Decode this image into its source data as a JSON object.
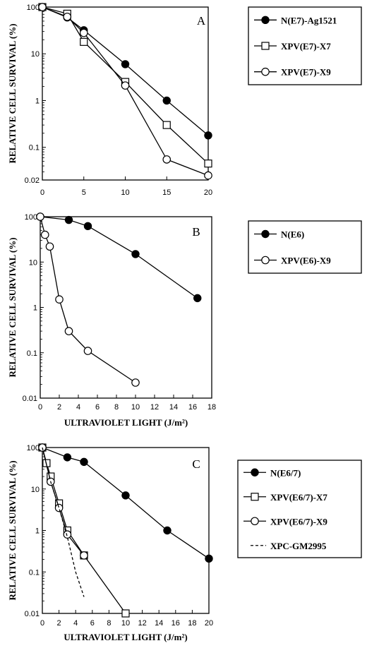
{
  "chart_data": [
    {
      "type": "line",
      "panel_label": "A",
      "ylabel": "RELATIVE CELL SURVIVAL (%)",
      "xlabel": "",
      "xlim": [
        0,
        20
      ],
      "ylim": [
        0.02,
        100
      ],
      "yscale": "log",
      "xticks": [
        0,
        5,
        10,
        15,
        20
      ],
      "yticks": [
        100,
        10,
        1,
        0.1,
        0.02
      ],
      "ytick_labels": [
        "100",
        "10",
        "1",
        "0.1",
        "0.02"
      ],
      "series": [
        {
          "name": "N(E7)-Ag1521",
          "marker": "filled-circle",
          "x": [
            0,
            3,
            5,
            10,
            15,
            20
          ],
          "y": [
            100,
            60,
            32,
            6,
            1,
            0.18
          ]
        },
        {
          "name": "XPV(E7)-X7",
          "marker": "open-square",
          "x": [
            0,
            3,
            5,
            10,
            15,
            20
          ],
          "y": [
            100,
            72,
            18,
            2.5,
            0.3,
            0.045
          ]
        },
        {
          "name": "XPV(E7)-X9",
          "marker": "open-circle",
          "x": [
            0,
            3,
            5,
            10,
            15,
            20
          ],
          "y": [
            100,
            62,
            28,
            2.1,
            0.055,
            0.025
          ]
        }
      ]
    },
    {
      "type": "line",
      "panel_label": "B",
      "ylabel": "RELATIVE CELL SURVIVAL (%)",
      "xlabel": "ULTRAVIOLET LIGHT (J/m²)",
      "xlim": [
        0,
        18
      ],
      "ylim": [
        0.01,
        100
      ],
      "yscale": "log",
      "xticks": [
        0,
        2,
        4,
        6,
        8,
        10,
        12,
        14,
        16,
        18
      ],
      "yticks": [
        100,
        10,
        1,
        0.1,
        0.01
      ],
      "ytick_labels": [
        "100",
        "10",
        "1",
        "0.1",
        "0.01"
      ],
      "series": [
        {
          "name": "N(E6)",
          "marker": "filled-circle",
          "x": [
            0,
            3,
            5,
            10,
            16.5
          ],
          "y": [
            100,
            85,
            62,
            15,
            1.6
          ]
        },
        {
          "name": "XPV(E6)-X9",
          "marker": "open-circle",
          "x": [
            0,
            0.5,
            1,
            2,
            3,
            5,
            10
          ],
          "y": [
            100,
            40,
            22,
            1.5,
            0.3,
            0.11,
            0.022
          ]
        }
      ]
    },
    {
      "type": "line",
      "panel_label": "C",
      "ylabel": "RELATIVE CELL SURVIVAL (%)",
      "xlabel": "ULTRAVIOLET LIGHT (J/m²)",
      "xlim": [
        0,
        20
      ],
      "ylim": [
        0.01,
        100
      ],
      "yscale": "log",
      "xticks": [
        0,
        2,
        4,
        6,
        8,
        10,
        12,
        14,
        16,
        18,
        20
      ],
      "yticks": [
        100,
        10,
        1,
        0.1,
        0.01
      ],
      "ytick_labels": [
        "100",
        "10",
        "1",
        "0.1",
        "0.01"
      ],
      "series": [
        {
          "name": "N(E6/7)",
          "marker": "filled-circle",
          "x": [
            0,
            3,
            5,
            10,
            15,
            20
          ],
          "y": [
            100,
            58,
            45,
            7,
            1,
            0.21
          ]
        },
        {
          "name": "XPV(E6/7)-X7",
          "marker": "open-square",
          "x": [
            0,
            0.5,
            1,
            2,
            3,
            5,
            10
          ],
          "y": [
            100,
            42,
            20,
            4.5,
            1,
            0.25,
            0.01
          ]
        },
        {
          "name": "XPV(E6/7)-X9",
          "marker": "open-circle",
          "x": [
            0,
            1,
            2,
            3,
            5
          ],
          "y": [
            100,
            15,
            3.5,
            0.8,
            0.25
          ]
        },
        {
          "name": "XPC-GM2995",
          "marker": "none",
          "line": "dashed",
          "x": [
            0,
            1,
            2,
            3,
            4,
            5
          ],
          "y": [
            100,
            15,
            3.5,
            0.7,
            0.1,
            0.025
          ]
        }
      ]
    }
  ]
}
